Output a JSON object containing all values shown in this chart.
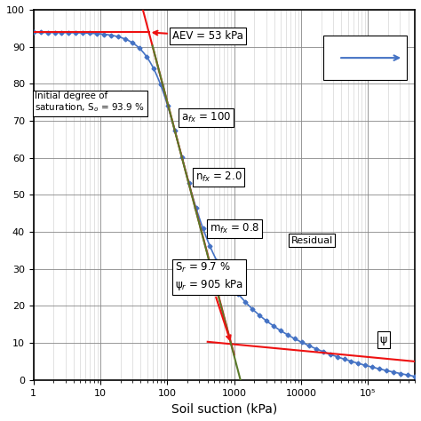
{
  "xlabel": "Soil suction (kPa)",
  "xlim_log": [
    0,
    5.7
  ],
  "ylim": [
    0,
    100
  ],
  "S0": 93.9,
  "Sr": 9.7,
  "psi_r": 905,
  "AEV": 53,
  "a_fx": 100,
  "n_fx": 2.0,
  "m_fx": 0.8,
  "swcc_color": "#4472C4",
  "red_color": "#EE1111",
  "green_color": "#5A7A2A",
  "background_color": "#FFFFFF",
  "grid_major_color": "#888888",
  "grid_minor_color": "#CCCCCC",
  "ann_AEV_text": "AEV = 53 kPa",
  "ann_afx_text": "a$_{fx}$ = 100",
  "ann_nfx_text": "n$_{fx}$ = 2.0",
  "ann_mfx_text": "m$_{fx}$ = 0.8",
  "ann_Sr_text": "S$_r$ = 9.7 %\nψ$_r$ = 905 kPa",
  "ann_init_text": "Initial degree of\nsaturation, S$_o$ = 93.9 %",
  "ann_residual_text": "Residual",
  "ann_psi_text": "ψ",
  "xtick_vals": [
    1,
    10,
    100,
    1000,
    10000,
    100000
  ],
  "xtick_labels": [
    "1",
    "10",
    "100",
    "1000",
    "10000",
    "10⁵"
  ]
}
